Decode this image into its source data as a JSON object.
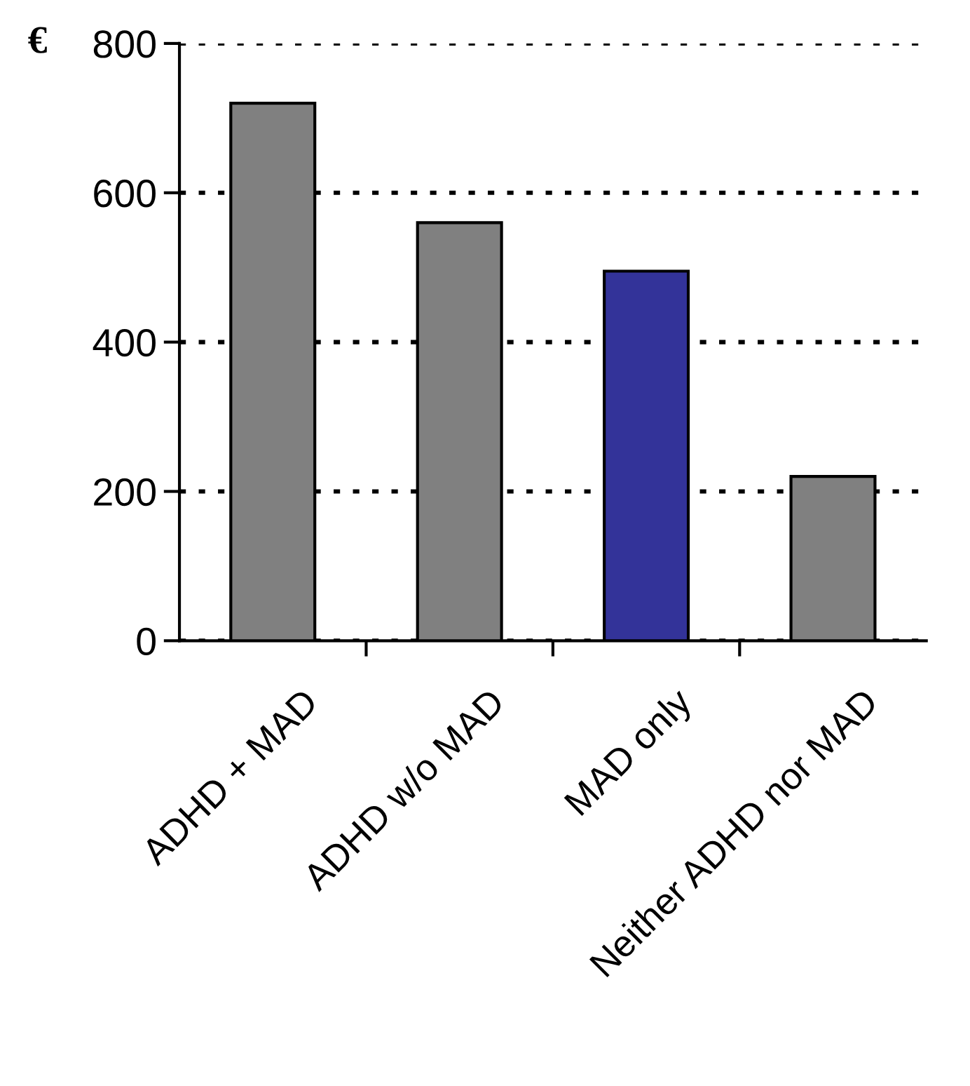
{
  "chart_data": {
    "type": "bar",
    "ylabel": "€",
    "categories": [
      "ADHD + MAD",
      "ADHD w/o MAD",
      "MAD only",
      "Neither ADHD nor MAD"
    ],
    "values": [
      720,
      560,
      495,
      220
    ],
    "colors": [
      "#808080",
      "#808080",
      "#333399",
      "#808080"
    ],
    "ylim": [
      0,
      800
    ],
    "yticks": [
      0,
      200,
      400,
      600,
      800
    ],
    "grid": "y",
    "line_style": "dotted"
  }
}
